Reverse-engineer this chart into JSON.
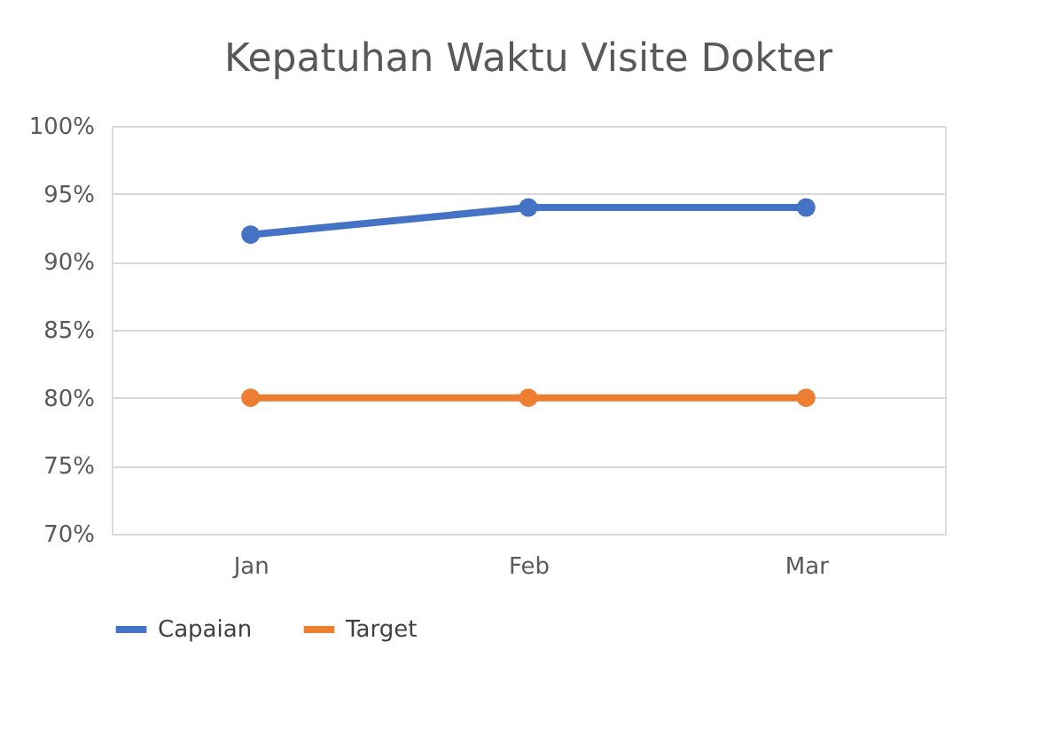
{
  "chart_data": {
    "type": "line",
    "title": "Kepatuhan Waktu Visite Dokter",
    "categories": [
      "Jan",
      "Feb",
      "Mar"
    ],
    "series": [
      {
        "name": "Capaian",
        "color": "#4472c4",
        "values": [
          92,
          94,
          94
        ]
      },
      {
        "name": "Target",
        "color": "#ed7d31",
        "values": [
          80,
          80,
          80
        ]
      }
    ],
    "ylim": [
      70,
      100
    ],
    "yticks": [
      {
        "value": 70,
        "label": "70%"
      },
      {
        "value": 75,
        "label": "75%"
      },
      {
        "value": 80,
        "label": "80%"
      },
      {
        "value": 85,
        "label": "85%"
      },
      {
        "value": 90,
        "label": "90%"
      },
      {
        "value": 95,
        "label": "95%"
      },
      {
        "value": 100,
        "label": "100%"
      }
    ],
    "grid": "y",
    "legend": "bottom",
    "marker": "circle",
    "line_style": "solid"
  }
}
